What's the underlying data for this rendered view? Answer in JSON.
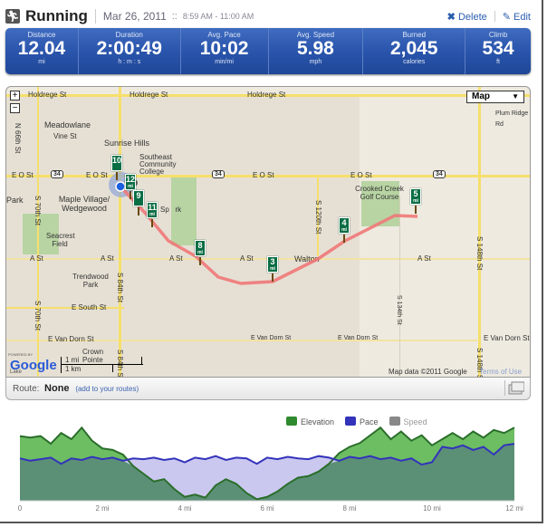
{
  "header": {
    "title": "Running",
    "date": "Mar 26, 2011",
    "separator": "::",
    "time": "8:59 AM - 11:00 AM",
    "delete_label": "Delete",
    "edit_label": "Edit"
  },
  "stats": [
    {
      "label": "Distance",
      "value": "12.04",
      "unit": "mi"
    },
    {
      "label": "Duration",
      "value": "2:00:49",
      "unit": "h : m : s"
    },
    {
      "label": "Avg. Pace",
      "value": "10:02",
      "unit": "min/mi"
    },
    {
      "label": "Avg. Speed",
      "value": "5.98",
      "unit": "mph"
    },
    {
      "label": "Burned",
      "value": "2,045",
      "unit": "calories"
    },
    {
      "label": "Climb",
      "value": "534",
      "unit": "ft"
    }
  ],
  "map": {
    "map_type": "Map",
    "zoom_in": "+",
    "zoom_out": "−",
    "labels": {
      "holdrege1": "Holdrege St",
      "holdrege2": "Holdrege St",
      "holdrege3": "Holdrege St",
      "eo1": "E O St",
      "eo2": "E O St",
      "eo3": "E O St",
      "eo4": "E O St",
      "a1": "A St",
      "a2": "A St",
      "a3": "A St",
      "a4": "A St",
      "a5": "A St",
      "south": "E South St",
      "vandorn1": "E Van Dorn St",
      "vandorn2": "E Van Dorn St",
      "vandorn3": "E Van Dorn St",
      "vandorn4": "E Van Dorn St",
      "n66": "N 66th St",
      "s70a": "S 70th St",
      "s70b": "S 70th St",
      "s84a": "S 84th St",
      "s84b": "S 84th St",
      "s120": "S 120th St",
      "s134": "S 134th St",
      "s148a": "S 148th St",
      "s148b": "S 148th St",
      "meadowlane": "Meadowlane",
      "vine": "Vine St",
      "sunrise": "Sunrise Hills",
      "southeast": "Southeast Community College",
      "park": "Park",
      "maple": "Maple Village/ Wedgewood",
      "seacrest": "Seacrest Field",
      "trendwood": "Trendwood Park",
      "crown": "Crown Pointe",
      "walton": "Walton",
      "crooked": "Crooked Creek Golf Course",
      "plum": "Plum Ridge Rd",
      "hwy": "34",
      "spark": "Sp   rk",
      "lake": "Lake"
    },
    "scale": {
      "mi": "1 mi",
      "km": "1 km"
    },
    "powered_by": "POWERED BY",
    "google": "Google",
    "attribution": "Map data ©2011 Google",
    "terms": "Terms of Use",
    "markers": [
      "10",
      "12",
      "9",
      "11",
      "8",
      "3",
      "4",
      "5"
    ],
    "marker_unit": "mi"
  },
  "route": {
    "label": "Route:",
    "value": "None",
    "link": "(add to your routes)"
  },
  "chart_data": {
    "type": "area",
    "title": "",
    "legend": [
      {
        "name": "Elevation",
        "color": "#2f8a2f"
      },
      {
        "name": "Pace",
        "color": "#3333bb"
      },
      {
        "name": "Speed",
        "color": "#888888"
      }
    ],
    "legend_position": "top-right",
    "x_ticks": [
      "0",
      "2 mi",
      "4 mi",
      "6 mi",
      "8 mi",
      "10 mi",
      "12 mi"
    ],
    "xlim": [
      0,
      12
    ],
    "x": [
      0,
      0.25,
      0.5,
      0.75,
      1,
      1.25,
      1.5,
      1.75,
      2,
      2.25,
      2.5,
      2.75,
      3,
      3.25,
      3.5,
      3.75,
      4,
      4.25,
      4.5,
      4.75,
      5,
      5.25,
      5.5,
      5.75,
      6,
      6.25,
      6.5,
      6.75,
      7,
      7.25,
      7.5,
      7.75,
      8,
      8.25,
      8.5,
      8.75,
      9,
      9.25,
      9.5,
      9.75,
      10,
      10.25,
      10.5,
      10.75,
      11,
      11.25,
      11.5,
      11.75,
      12
    ],
    "series": [
      {
        "name": "Elevation",
        "values": [
          84,
          82,
          84,
          74,
          88,
          80,
          95,
          78,
          68,
          66,
          60,
          45,
          35,
          25,
          28,
          15,
          5,
          8,
          4,
          20,
          28,
          22,
          10,
          2,
          5,
          12,
          22,
          30,
          32,
          38,
          48,
          62,
          70,
          75,
          85,
          95,
          80,
          90,
          78,
          85,
          72,
          80,
          88,
          80,
          90,
          82,
          92,
          88,
          95
        ]
      },
      {
        "name": "Pace",
        "values": [
          55,
          52,
          54,
          56,
          48,
          55,
          53,
          57,
          54,
          56,
          52,
          55,
          54,
          56,
          53,
          55,
          50,
          56,
          54,
          58,
          53,
          56,
          55,
          48,
          56,
          54,
          57,
          55,
          54,
          58,
          56,
          52,
          57,
          55,
          58,
          54,
          56,
          52,
          55,
          47,
          50,
          70,
          68,
          72,
          66,
          70,
          60,
          72,
          74
        ]
      }
    ]
  }
}
